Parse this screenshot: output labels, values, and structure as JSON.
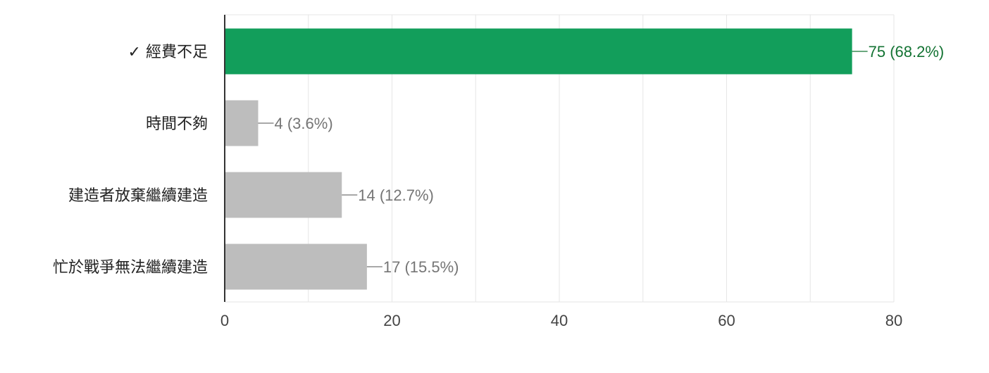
{
  "chart_data": {
    "type": "bar",
    "orientation": "horizontal",
    "categories": [
      "經費不足",
      "時間不夠",
      "建造者放棄繼續建造",
      "忙於戰爭無法繼續建造"
    ],
    "correct_marker": "✓",
    "correct_index": 0,
    "values": [
      75,
      4,
      14,
      17
    ],
    "data_labels": [
      "75 (68.2%)",
      "4 (3.6%)",
      "14 (12.7%)",
      "17 (15.5%)"
    ],
    "xlim": [
      0,
      80
    ],
    "x_ticks": [
      0,
      20,
      40,
      60,
      80
    ],
    "grid": true,
    "legend": "none",
    "colors": {
      "correct_bar": "#129e5b",
      "other_bar": "#bdbdbd",
      "correct_label": "#137333",
      "other_label": "#757575",
      "grid": "#e6e6e6",
      "axis": "#333333"
    }
  }
}
